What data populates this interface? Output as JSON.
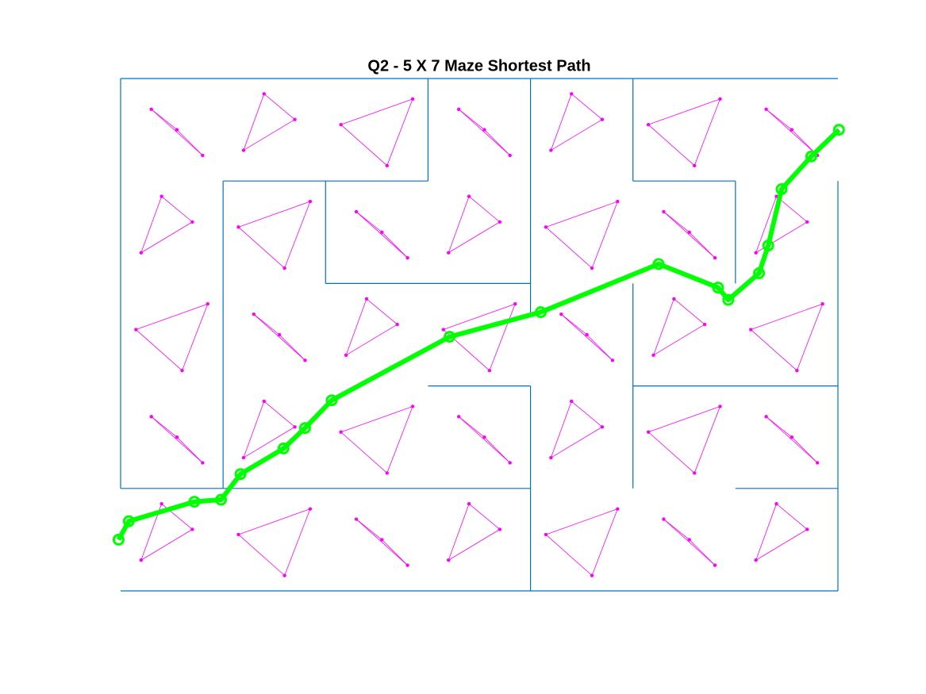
{
  "chart_data": {
    "type": "maze-path",
    "title": "Q2 - 5 X 7 Maze Shortest Path",
    "xlim": [
      0,
      7
    ],
    "ylim": [
      0,
      5
    ],
    "wall_color": "#0072bd",
    "walls": [
      [
        0,
        5,
        7,
        5
      ],
      [
        0,
        0,
        7,
        0
      ],
      [
        0,
        5,
        0,
        1
      ],
      [
        7,
        4,
        7,
        0
      ],
      [
        0,
        1,
        1,
        1
      ],
      [
        1,
        4,
        1,
        1
      ],
      [
        1,
        4,
        3,
        4
      ],
      [
        3,
        5,
        3,
        4
      ],
      [
        2,
        4,
        2,
        3
      ],
      [
        2,
        3,
        4,
        3
      ],
      [
        4,
        5,
        4,
        2.7
      ],
      [
        3,
        2,
        4,
        2
      ],
      [
        1,
        1,
        4,
        1
      ],
      [
        4,
        2,
        4,
        0
      ],
      [
        5,
        5,
        5,
        4
      ],
      [
        5,
        4,
        6,
        4
      ],
      [
        6,
        4,
        6,
        3
      ],
      [
        5,
        3,
        5,
        1
      ],
      [
        5,
        2,
        7,
        2
      ],
      [
        6,
        1,
        7,
        1
      ]
    ],
    "nodes": {
      "color": "#ff00ff",
      "x": [
        0.2,
        0.7,
        0.4,
        0.3,
        0.8,
        0.55,
        0.15,
        0.6,
        0.85,
        0.2,
        0.7,
        0.4,
        0.3,
        0.8,
        0.55,
        1.15,
        1.6,
        1.85,
        1.2,
        1.7,
        1.4,
        1.3,
        1.8,
        1.55,
        1.15,
        1.6,
        1.85,
        1.2,
        1.7,
        1.4,
        2.3,
        2.8,
        2.55,
        2.15,
        2.6,
        2.85,
        2.2,
        2.7,
        2.4,
        2.3,
        2.8,
        2.55,
        2.15,
        2.6,
        2.85,
        3.2,
        3.7,
        3.4,
        3.3,
        3.8,
        3.55,
        3.15,
        3.6,
        3.85,
        3.2,
        3.7,
        3.4,
        3.3,
        3.8,
        3.55,
        4.15,
        4.6,
        4.85,
        4.2,
        4.7,
        4.4,
        4.3,
        4.8,
        4.55,
        4.15,
        4.6,
        4.85,
        4.2,
        4.7,
        4.4,
        5.3,
        5.8,
        5.55,
        5.15,
        5.6,
        5.85,
        5.2,
        5.7,
        5.4,
        5.3,
        5.8,
        5.55,
        5.15,
        5.6,
        5.85,
        6.2,
        6.7,
        6.4,
        6.3,
        6.8,
        6.55,
        6.15,
        6.6,
        6.85,
        6.2,
        6.7,
        6.4,
        6.3,
        6.8,
        6.55
      ],
      "y": [
        0.3,
        0.6,
        0.85,
        1.7,
        1.25,
        1.5,
        2.55,
        2.15,
        2.8,
        3.3,
        3.6,
        3.85,
        4.7,
        4.25,
        4.5,
        0.55,
        0.15,
        0.8,
        1.3,
        1.6,
        1.85,
        2.7,
        2.25,
        2.5,
        3.55,
        3.15,
        3.8,
        4.3,
        4.6,
        4.85,
        0.7,
        0.25,
        0.5,
        1.55,
        1.15,
        1.8,
        2.3,
        2.6,
        2.85,
        3.7,
        3.25,
        3.5,
        4.55,
        4.15,
        4.8,
        0.3,
        0.6,
        0.85,
        1.7,
        1.25,
        1.5,
        2.55,
        2.15,
        2.8,
        3.3,
        3.6,
        3.85,
        4.7,
        4.25,
        4.5,
        0.55,
        0.15,
        0.8,
        1.3,
        1.6,
        1.85,
        2.7,
        2.25,
        2.5,
        3.55,
        3.15,
        3.8,
        4.3,
        4.6,
        4.85,
        0.7,
        0.25,
        0.5,
        1.55,
        1.15,
        1.8,
        2.3,
        2.6,
        2.85,
        3.7,
        3.25,
        3.5,
        4.55,
        4.15,
        4.8,
        0.3,
        0.6,
        0.85,
        1.7,
        1.25,
        1.5,
        2.55,
        2.15,
        2.8,
        3.3,
        3.6,
        3.85,
        4.7,
        4.25,
        4.5
      ]
    },
    "path": {
      "color": "#00ff00",
      "x": [
        -0.02,
        0.08,
        0.72,
        0.98,
        1.17,
        1.59,
        1.8,
        2.06,
        3.21,
        4.1,
        5.25,
        5.83,
        5.93,
        6.23,
        6.32,
        6.45,
        6.74,
        7.01
      ],
      "y": [
        0.5,
        0.68,
        0.87,
        0.89,
        1.14,
        1.39,
        1.59,
        1.86,
        2.48,
        2.72,
        3.19,
        2.96,
        2.84,
        3.1,
        3.37,
        3.92,
        4.24,
        4.5
      ]
    }
  }
}
